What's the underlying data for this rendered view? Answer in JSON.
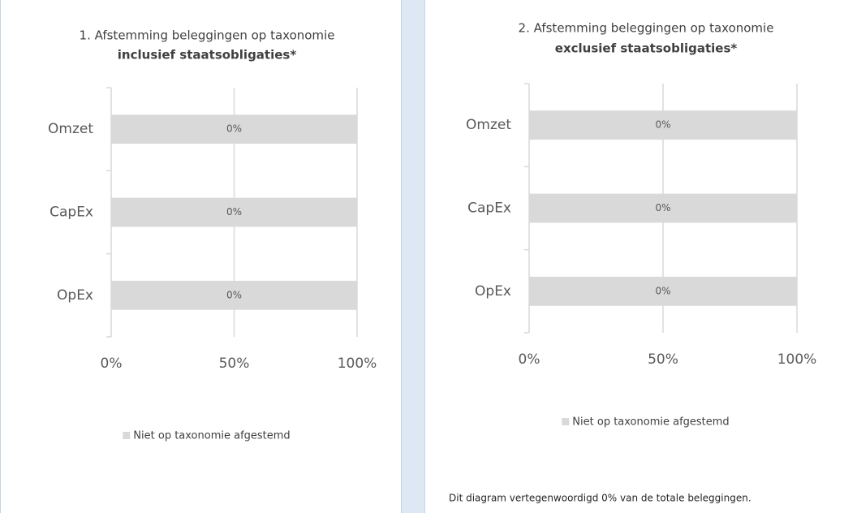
{
  "chart_data": [
    {
      "type": "bar",
      "orientation": "horizontal",
      "stacked": true,
      "title": "1. Afstemming beleggingen op taxonomie",
      "subtitle": "inclusief staatsobligaties*",
      "categories": [
        "Omzet",
        "CapEx",
        "OpEx"
      ],
      "series": [
        {
          "color": "#4472c4",
          "values": [
            0,
            0,
            0
          ],
          "value_labels": [
            "0%",
            "0%",
            "0%"
          ]
        },
        {
          "name": "Niet op taxonomie afgestemd",
          "color": "#d9d9d9",
          "values": [
            100,
            100,
            100
          ]
        }
      ],
      "xlim": [
        0,
        100
      ],
      "xticks": [
        {
          "value": 0,
          "label": "0%"
        },
        {
          "value": 50,
          "label": "50%"
        },
        {
          "value": 100,
          "label": "100%"
        }
      ],
      "grid": true,
      "legend": "bottom"
    },
    {
      "type": "bar",
      "orientation": "horizontal",
      "stacked": true,
      "title": "2. Afstemming beleggingen op taxonomie",
      "subtitle": "exclusief staatsobligaties*",
      "categories": [
        "Omzet",
        "CapEx",
        "OpEx"
      ],
      "series": [
        {
          "color": "#4472c4",
          "values": [
            0,
            0,
            0
          ],
          "value_labels": [
            "0%",
            "0%",
            "0%"
          ]
        },
        {
          "name": "Niet op taxonomie afgestemd",
          "color": "#d9d9d9",
          "values": [
            100,
            100,
            100
          ]
        }
      ],
      "xlim": [
        0,
        100
      ],
      "xticks": [
        {
          "value": 0,
          "label": "0%"
        },
        {
          "value": 50,
          "label": "50%"
        },
        {
          "value": 100,
          "label": "100%"
        }
      ],
      "grid": true,
      "legend": "bottom",
      "note": "Dit diagram vertegenwoordigd 0% van de totale beleggingen."
    }
  ]
}
